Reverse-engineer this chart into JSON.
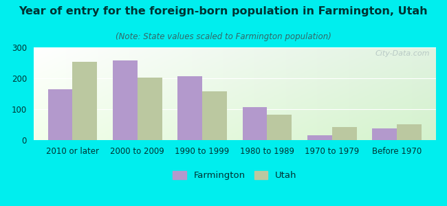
{
  "title": "Year of entry for the foreign-born population in Farmington, Utah",
  "subtitle": "(Note: State values scaled to Farmington population)",
  "categories": [
    "2010 or later",
    "2000 to 2009",
    "1990 to 1999",
    "1980 to 1989",
    "1970 to 1979",
    "Before 1970"
  ],
  "farmington_values": [
    165,
    257,
    207,
    106,
    15,
    38
  ],
  "utah_values": [
    253,
    202,
    157,
    83,
    43,
    52
  ],
  "farmington_color": "#b399cc",
  "utah_color": "#bbc8a0",
  "background_color": "#00eeee",
  "ylim": [
    0,
    300
  ],
  "yticks": [
    0,
    100,
    200,
    300
  ],
  "bar_width": 0.38,
  "title_fontsize": 11.5,
  "subtitle_fontsize": 8.5,
  "tick_fontsize": 8.5,
  "legend_fontsize": 9.5,
  "title_color": "#003333",
  "subtitle_color": "#336666",
  "tick_color": "#003333",
  "watermark": "City-Data.com"
}
